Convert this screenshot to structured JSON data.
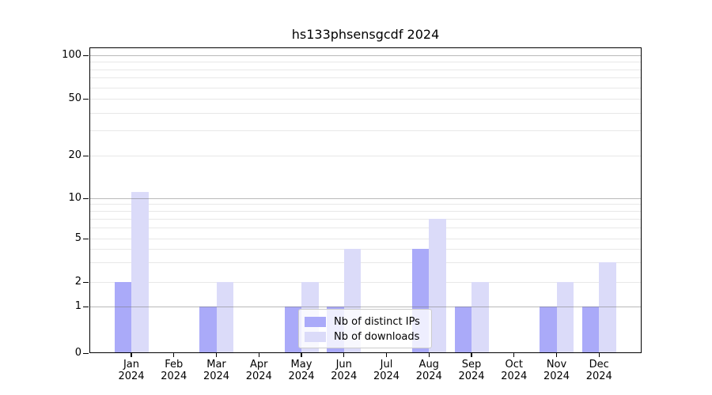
{
  "title": "hs133phsensgcdf 2024",
  "chart_data": {
    "type": "bar",
    "title": "hs133phsensgcdf 2024",
    "categories": [
      "Jan 2024",
      "Feb 2024",
      "Mar 2024",
      "Apr 2024",
      "May 2024",
      "Jun 2024",
      "Jul 2024",
      "Aug 2024",
      "Sep 2024",
      "Oct 2024",
      "Nov 2024",
      "Dec 2024"
    ],
    "series": [
      {
        "name": "Nb of distinct IPs",
        "color": "#aaaaf9",
        "values": [
          2,
          0,
          1,
          0,
          1,
          1,
          0,
          4,
          1,
          0,
          1,
          1
        ]
      },
      {
        "name": "Nb of downloads",
        "color": "#dbdbf9",
        "values": [
          11,
          0,
          2,
          0,
          2,
          4,
          0,
          7,
          2,
          0,
          2,
          3
        ]
      }
    ],
    "xlabel": "",
    "ylabel": "",
    "yscale": "symlog",
    "yticks": [
      0,
      1,
      2,
      5,
      10,
      20,
      50,
      100
    ],
    "ytick_labels": [
      "0",
      "1",
      "2",
      "5",
      "10",
      "20",
      "50",
      "100"
    ],
    "minor_gridline_values": [
      2,
      3,
      4,
      5,
      6,
      7,
      8,
      9,
      20,
      30,
      40,
      50,
      60,
      70,
      80,
      90
    ],
    "major_gridline_values": [
      1,
      10,
      100
    ],
    "ylim": [
      0,
      115
    ],
    "grid": true,
    "legend_position": "inside-bottom-center"
  },
  "colors": {
    "bar_distinct_ips": "#aaaaf9",
    "bar_downloads": "#dbdbf9",
    "grid_major": "#bbbbbb",
    "grid_minor": "#e9e9e9",
    "axis": "#000000",
    "background": "#ffffff",
    "legend_border": "#cccccc"
  }
}
